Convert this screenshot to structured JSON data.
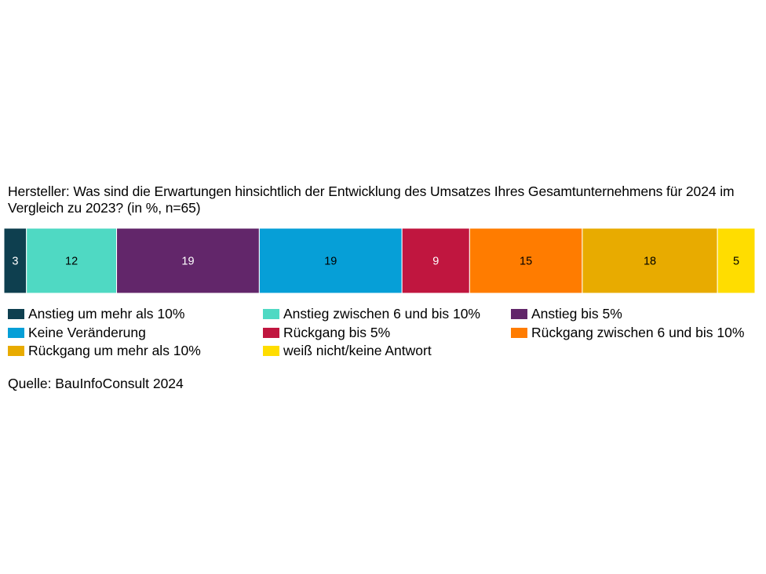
{
  "title": "Hersteller: Was sind die Erwartungen hinsichtlich der Entwicklung des Umsatzes Ihres Gesamtunternehmens für 2024 im Vergleich zu 2023? (in %, n=65)",
  "source": "Quelle: BauInfoConsult 2024",
  "chart_data": {
    "type": "bar",
    "orientation": "horizontal",
    "stacked": true,
    "title": "Hersteller: Was sind die Erwartungen hinsichtlich der Entwicklung des Umsatzes Ihres Gesamtunternehmens für 2024 im Vergleich zu 2023? (in %, n=65)",
    "xlabel": "",
    "ylabel": "",
    "xlim": [
      0,
      100
    ],
    "grid": false,
    "legend_position": "bottom",
    "series": [
      {
        "name": "Anstieg um mehr als 10%",
        "values": [
          3
        ],
        "color": "#0e3f4f",
        "label_color": "#ffffff"
      },
      {
        "name": "Anstieg zwischen 6 und bis 10%",
        "values": [
          12
        ],
        "color": "#4fd9c3",
        "label_color": "#000000"
      },
      {
        "name": "Anstieg bis 5%",
        "values": [
          19
        ],
        "color": "#62266a",
        "label_color": "#ffffff"
      },
      {
        "name": "Keine Veränderung",
        "values": [
          19
        ],
        "color": "#069fd7",
        "label_color": "#000000"
      },
      {
        "name": "Rückgang bis 5%",
        "values": [
          9
        ],
        "color": "#c0163f",
        "label_color": "#ffffff"
      },
      {
        "name": "Rückgang zwischen 6 und bis 10%",
        "values": [
          15
        ],
        "color": "#ff7c00",
        "label_color": "#000000"
      },
      {
        "name": "Rückgang um mehr als 10%",
        "values": [
          18
        ],
        "color": "#e8ab00",
        "label_color": "#000000"
      },
      {
        "name": "weiß nicht/keine Antwort",
        "values": [
          5
        ],
        "color": "#ffdd00",
        "label_color": "#000000"
      }
    ]
  }
}
